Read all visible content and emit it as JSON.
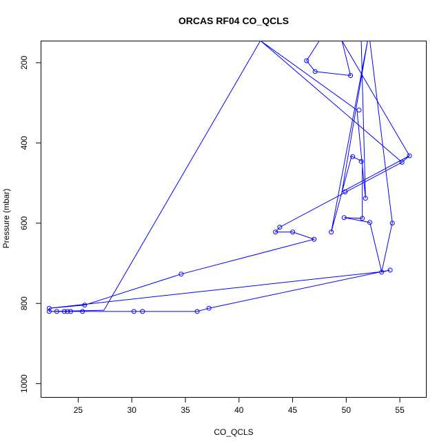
{
  "chart_data": {
    "type": "line",
    "title": "ORCAS RF04 CO_QCLS",
    "xlabel": "CO_QCLS",
    "ylabel": "Pressure (mbar)",
    "xlim": [
      21.5,
      57.5
    ],
    "ylim": [
      1035,
      145
    ],
    "y_inverted": true,
    "grid": false,
    "line_color": "#0000ff",
    "x_ticks": [
      25,
      30,
      35,
      40,
      45,
      50,
      55
    ],
    "y_ticks": [
      200,
      400,
      600,
      800,
      1000
    ],
    "series": [
      {
        "x": [
          47.5,
          46.3,
          47.1,
          50.4,
          49.6,
          55.9,
          55.2,
          42.0,
          51.0,
          51.8,
          51.4,
          52.2,
          54.3,
          53.3,
          54.1,
          53.3,
          22.3,
          22.3,
          23.0,
          23.7,
          24.0,
          24.3,
          25.4,
          30.2,
          31.0,
          36.1,
          37.2,
          53.3,
          52.2,
          49.8,
          51.5,
          51.5,
          50.5,
          48.6,
          52.0,
          49.6,
          55.9,
          55.2,
          43.8,
          43.4,
          45.0,
          47.0,
          34.6,
          25.6,
          22.3,
          22.3,
          27.4,
          42.0,
          51.0,
          51.8,
          51.4,
          52.2,
          54.3,
          53.3,
          54.1
        ],
        "y": [
          145,
          195,
          222,
          232,
          145,
          432,
          448,
          145,
          318,
          538,
          145,
          145,
          599,
          722,
          717,
          721,
          812,
          820,
          820,
          820,
          820,
          820,
          820,
          820,
          820,
          820,
          812,
          721,
          598,
          586,
          588,
          446,
          433,
          622,
          145,
          522,
          432,
          448,
          610,
          622,
          622,
          640,
          727,
          804,
          812,
          820,
          817,
          145,
          318,
          538,
          145,
          145,
          599,
          722,
          717
        ]
      }
    ],
    "points": [
      {
        "x": 46.3,
        "y": 195
      },
      {
        "x": 47.1,
        "y": 222
      },
      {
        "x": 50.4,
        "y": 232
      },
      {
        "x": 51.2,
        "y": 318
      },
      {
        "x": 51.4,
        "y": 446
      },
      {
        "x": 50.6,
        "y": 434
      },
      {
        "x": 55.9,
        "y": 432
      },
      {
        "x": 55.2,
        "y": 448
      },
      {
        "x": 49.9,
        "y": 522
      },
      {
        "x": 51.8,
        "y": 538
      },
      {
        "x": 49.8,
        "y": 586
      },
      {
        "x": 51.5,
        "y": 588
      },
      {
        "x": 52.2,
        "y": 598
      },
      {
        "x": 54.3,
        "y": 600
      },
      {
        "x": 43.8,
        "y": 610
      },
      {
        "x": 43.4,
        "y": 622
      },
      {
        "x": 45.0,
        "y": 622
      },
      {
        "x": 48.6,
        "y": 622
      },
      {
        "x": 47.0,
        "y": 640
      },
      {
        "x": 54.1,
        "y": 717
      },
      {
        "x": 53.3,
        "y": 722
      },
      {
        "x": 34.6,
        "y": 727
      },
      {
        "x": 25.6,
        "y": 804
      },
      {
        "x": 22.3,
        "y": 812
      },
      {
        "x": 37.2,
        "y": 812
      },
      {
        "x": 22.3,
        "y": 820
      },
      {
        "x": 23.0,
        "y": 820
      },
      {
        "x": 23.7,
        "y": 820
      },
      {
        "x": 24.0,
        "y": 820
      },
      {
        "x": 24.3,
        "y": 820
      },
      {
        "x": 25.4,
        "y": 820
      },
      {
        "x": 30.2,
        "y": 820
      },
      {
        "x": 31.0,
        "y": 820
      },
      {
        "x": 36.1,
        "y": 820
      }
    ]
  }
}
